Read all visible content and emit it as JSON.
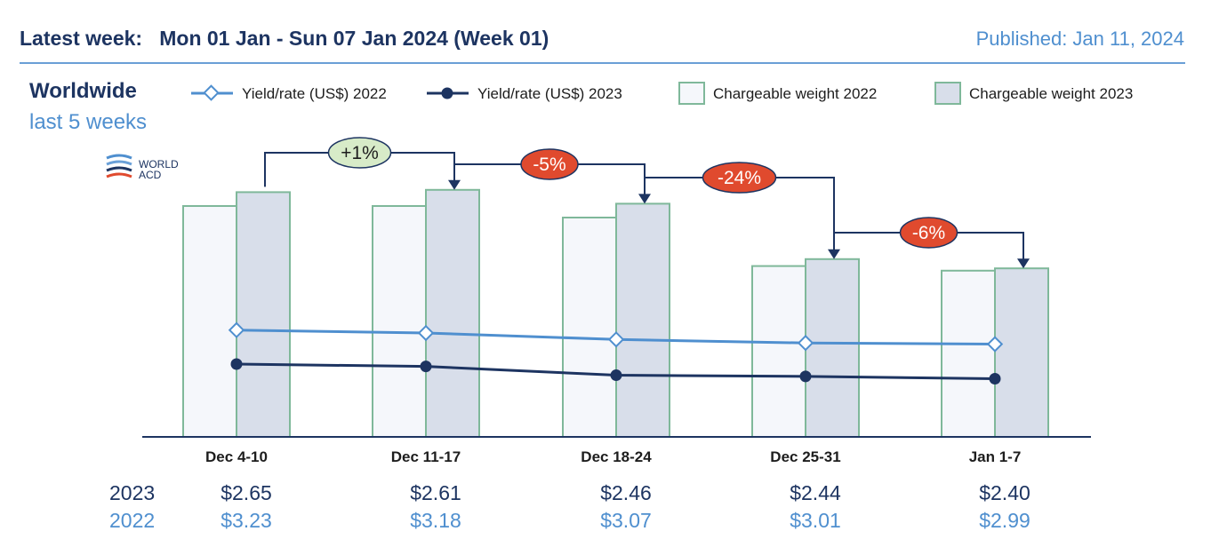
{
  "header": {
    "latest_week_label": "Latest week:",
    "week_range": "Mon 01 Jan - Sun 07 Jan 2024 (Week 01)",
    "published": "Published: Jan 11, 2024"
  },
  "region": {
    "title": "Worldwide",
    "period": "last 5 weeks"
  },
  "logo": {
    "line1": "WORLD",
    "line2": "ACD"
  },
  "colors": {
    "dark_navy": "#1d3461",
    "light_blue": "#4f8fcf",
    "bar_border": "#7fb89a",
    "bar_2022_fill": "#f5f7fb",
    "bar_2023_fill": "#d8deea",
    "pos_badge": "#d7ebc8",
    "neg_badge": "#e04a2e"
  },
  "chart_data": {
    "type": "bar+line",
    "categories": [
      "Dec 4-10",
      "Dec 11-17",
      "Dec 18-24",
      "Dec 25-31",
      "Jan 1-7"
    ],
    "bars": [
      {
        "name": "Chargeable weight 2022",
        "values": [
          100,
          100,
          95,
          74,
          72
        ]
      },
      {
        "name": "Chargeable weight 2023",
        "values": [
          106,
          107,
          101,
          77,
          73
        ]
      }
    ],
    "lines": [
      {
        "name": "Yield/rate (US$) 2022",
        "values": [
          3.23,
          3.18,
          3.07,
          3.01,
          2.99
        ]
      },
      {
        "name": "Yield/rate (US$) 2023",
        "values": [
          2.65,
          2.61,
          2.46,
          2.44,
          2.4
        ]
      }
    ],
    "changes": [
      {
        "label": "+1%",
        "sign": "positive"
      },
      {
        "label": "-5%",
        "sign": "negative"
      },
      {
        "label": "-24%",
        "sign": "negative"
      },
      {
        "label": "-6%",
        "sign": "negative"
      }
    ],
    "legend": [
      "Yield/rate (US$) 2022",
      "Yield/rate (US$) 2023",
      "Chargeable weight 2022",
      "Chargeable weight 2023"
    ],
    "rows": [
      {
        "year": "2023",
        "values": [
          "$2.65",
          "$2.61",
          "$2.46",
          "$2.44",
          "$2.40"
        ]
      },
      {
        "year": "2022",
        "values": [
          "$3.23",
          "$3.18",
          "$3.07",
          "$3.01",
          "$2.99"
        ]
      }
    ]
  }
}
